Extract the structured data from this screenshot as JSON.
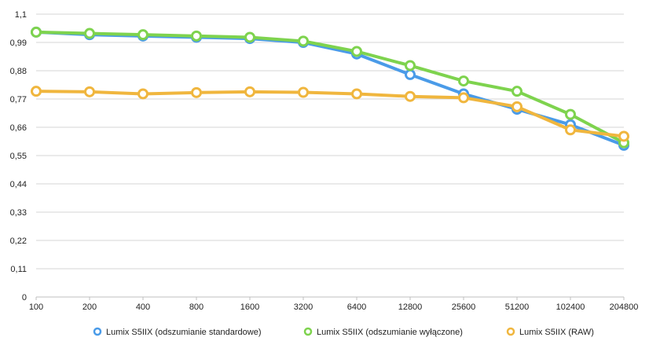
{
  "chart_data": {
    "type": "line",
    "title": "",
    "xlabel": "",
    "ylabel": "",
    "categories": [
      "100",
      "200",
      "400",
      "800",
      "1600",
      "3200",
      "6400",
      "12800",
      "25600",
      "51200",
      "102400",
      "204800"
    ],
    "y_ticks": [
      "0",
      "0,11",
      "0,22",
      "0,33",
      "0,44",
      "0,55",
      "0,66",
      "0,77",
      "0,88",
      "0,99",
      "1,1"
    ],
    "ylim": [
      0,
      1.1
    ],
    "grid": true,
    "legend_position": "bottom",
    "series": [
      {
        "name": "Lumix S5IIX (odszumianie standardowe)",
        "color": "#4a9be8",
        "values": [
          1.03,
          1.02,
          1.015,
          1.01,
          1.005,
          0.99,
          0.945,
          0.865,
          0.79,
          0.73,
          0.67,
          0.59
        ]
      },
      {
        "name": "Lumix S5IIX (odszumianie wyłączone)",
        "color": "#7ed34e",
        "values": [
          1.03,
          1.025,
          1.02,
          1.015,
          1.01,
          0.995,
          0.955,
          0.9,
          0.84,
          0.8,
          0.71,
          0.6
        ]
      },
      {
        "name": "Lumix S5IIX (RAW)",
        "color": "#f0b63e",
        "values": [
          0.8,
          0.798,
          0.79,
          0.795,
          0.798,
          0.796,
          0.79,
          0.78,
          0.775,
          0.74,
          0.65,
          0.625
        ]
      }
    ]
  }
}
